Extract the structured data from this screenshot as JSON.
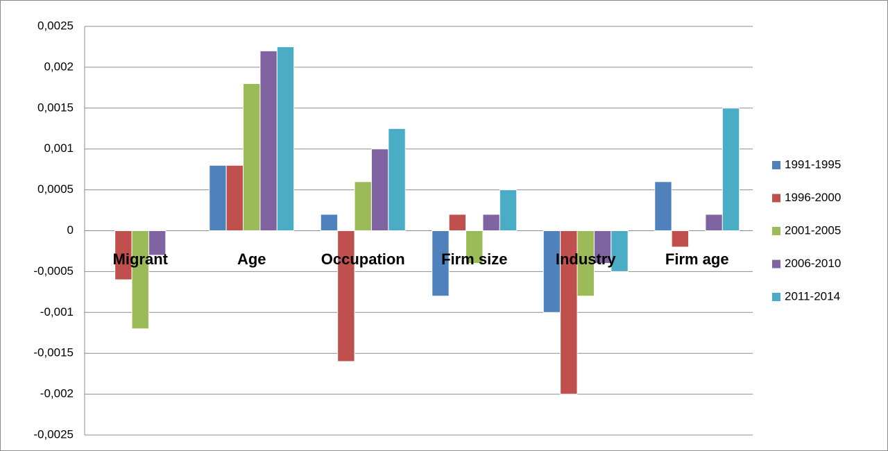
{
  "chart_data": {
    "type": "bar",
    "categories": [
      "Migrant",
      "Age",
      "Occupation",
      "Firm size",
      "Industry",
      "Firm age"
    ],
    "series": [
      {
        "name": "1991-1995",
        "color": "#4f81bd",
        "values": [
          0,
          0.0008,
          0.0002,
          -0.0008,
          -0.001,
          0.0006
        ]
      },
      {
        "name": "1996-2000",
        "color": "#c0504d",
        "values": [
          -0.0006,
          0.0008,
          -0.0016,
          0.0002,
          -0.002,
          -0.0002
        ]
      },
      {
        "name": "2001-2005",
        "color": "#9bbb59",
        "values": [
          -0.0012,
          0.0018,
          0.0006,
          -0.0004,
          -0.0008,
          0
        ]
      },
      {
        "name": "2006-2010",
        "color": "#8064a2",
        "values": [
          -0.0003,
          0.0022,
          0.001,
          0.0002,
          -0.0004,
          0.0002
        ]
      },
      {
        "name": "2011-2014",
        "color": "#4bacc6",
        "values": [
          0,
          0.00225,
          0.00125,
          0.0005,
          -0.0005,
          0.0015
        ]
      }
    ],
    "ylim": [
      -0.0025,
      0.0025
    ],
    "yticks": [
      {
        "value": -0.0025,
        "label": "-0,0025"
      },
      {
        "value": -0.002,
        "label": "-0,002"
      },
      {
        "value": -0.0015,
        "label": "-0,0015"
      },
      {
        "value": -0.001,
        "label": "-0,001"
      },
      {
        "value": -0.0005,
        "label": "-0,0005"
      },
      0,
      {
        "value": 0.0005,
        "label": "0,0005"
      },
      {
        "value": 0.001,
        "label": "0,001"
      },
      {
        "value": 0.0015,
        "label": "0,0015"
      },
      {
        "value": 0.002,
        "label": "0,002"
      },
      {
        "value": 0.0025,
        "label": "0,0025"
      }
    ],
    "grid": true,
    "legend": "right"
  }
}
